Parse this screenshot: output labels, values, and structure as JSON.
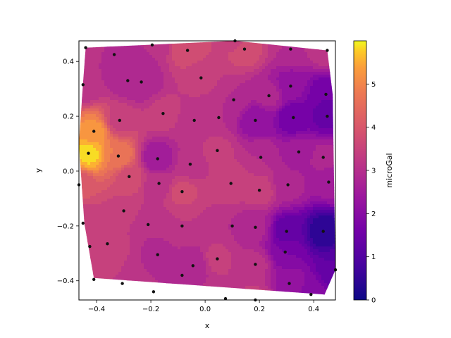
{
  "chart_data": {
    "type": "contour",
    "title": "",
    "xlabel": "x",
    "ylabel": "y",
    "xlim": [
      -0.465,
      0.48
    ],
    "ylim": [
      -0.47,
      0.475
    ],
    "xticks": [
      -0.4,
      -0.2,
      0.0,
      0.2,
      0.4
    ],
    "yticks": [
      -0.4,
      -0.2,
      0.0,
      0.2,
      0.4
    ],
    "xtick_labels": [
      "−0.4",
      "−0.2",
      "0.0",
      "0.2",
      "0.4"
    ],
    "ytick_labels": [
      "−0.4",
      "−0.2",
      "0.0",
      "0.2",
      "0.4"
    ],
    "colorbar": {
      "label": "microGal",
      "range": [
        0,
        6
      ],
      "ticks": [
        0,
        1,
        2,
        3,
        4,
        5
      ],
      "tick_labels": [
        "0",
        "1",
        "2",
        "3",
        "4",
        "5"
      ],
      "colormap": "plasma"
    },
    "hull": [
      [
        -0.44,
        0.45
      ],
      [
        0.11,
        0.475
      ],
      [
        0.45,
        0.44
      ],
      [
        0.47,
        0.28
      ],
      [
        0.48,
        -0.36
      ],
      [
        0.44,
        -0.45
      ],
      [
        -0.41,
        -0.39
      ],
      [
        -0.445,
        -0.19
      ],
      [
        -0.465,
        0.1
      ],
      [
        -0.45,
        0.32
      ]
    ],
    "points": [
      {
        "x": -0.44,
        "y": 0.45,
        "v": 3.0
      },
      {
        "x": -0.335,
        "y": 0.425,
        "v": 3.0
      },
      {
        "x": -0.285,
        "y": 0.33,
        "v": 2.8
      },
      {
        "x": -0.235,
        "y": 0.325,
        "v": 2.7
      },
      {
        "x": -0.195,
        "y": 0.46,
        "v": 3.0
      },
      {
        "x": -0.065,
        "y": 0.44,
        "v": 3.8
      },
      {
        "x": -0.015,
        "y": 0.34,
        "v": 3.4
      },
      {
        "x": 0.11,
        "y": 0.475,
        "v": 3.5
      },
      {
        "x": 0.145,
        "y": 0.445,
        "v": 3.8
      },
      {
        "x": 0.315,
        "y": 0.445,
        "v": 3.0
      },
      {
        "x": 0.45,
        "y": 0.44,
        "v": 3.2
      },
      {
        "x": -0.45,
        "y": 0.315,
        "v": 3.0
      },
      {
        "x": 0.315,
        "y": 0.31,
        "v": 2.2
      },
      {
        "x": 0.445,
        "y": 0.28,
        "v": 1.5
      },
      {
        "x": 0.235,
        "y": 0.275,
        "v": 2.8
      },
      {
        "x": 0.105,
        "y": 0.26,
        "v": 3.0
      },
      {
        "x": -0.155,
        "y": 0.21,
        "v": 3.4
      },
      {
        "x": -0.315,
        "y": 0.185,
        "v": 3.5
      },
      {
        "x": -0.04,
        "y": 0.185,
        "v": 3.2
      },
      {
        "x": 0.05,
        "y": 0.195,
        "v": 3.0
      },
      {
        "x": 0.185,
        "y": 0.185,
        "v": 2.1
      },
      {
        "x": 0.325,
        "y": 0.195,
        "v": 1.5
      },
      {
        "x": 0.45,
        "y": 0.2,
        "v": 1.4
      },
      {
        "x": -0.41,
        "y": 0.145,
        "v": 5.2
      },
      {
        "x": -0.43,
        "y": 0.065,
        "v": 5.8
      },
      {
        "x": -0.32,
        "y": 0.055,
        "v": 4.8
      },
      {
        "x": -0.175,
        "y": 0.045,
        "v": 2.4
      },
      {
        "x": -0.055,
        "y": 0.025,
        "v": 3.1
      },
      {
        "x": 0.045,
        "y": 0.075,
        "v": 3.4
      },
      {
        "x": 0.205,
        "y": 0.05,
        "v": 3.0
      },
      {
        "x": 0.345,
        "y": 0.07,
        "v": 2.5
      },
      {
        "x": 0.435,
        "y": 0.05,
        "v": 2.8
      },
      {
        "x": -0.28,
        "y": -0.02,
        "v": 3.8
      },
      {
        "x": -0.17,
        "y": -0.045,
        "v": 3.1
      },
      {
        "x": -0.085,
        "y": -0.075,
        "v": 3.7
      },
      {
        "x": 0.095,
        "y": -0.045,
        "v": 3.6
      },
      {
        "x": 0.2,
        "y": -0.07,
        "v": 3.5
      },
      {
        "x": 0.305,
        "y": -0.05,
        "v": 2.8
      },
      {
        "x": 0.455,
        "y": -0.04,
        "v": 2.5
      },
      {
        "x": -0.465,
        "y": -0.05,
        "v": 4.0
      },
      {
        "x": -0.3,
        "y": -0.145,
        "v": 3.5
      },
      {
        "x": -0.45,
        "y": -0.19,
        "v": 3.3
      },
      {
        "x": -0.21,
        "y": -0.195,
        "v": 3.0
      },
      {
        "x": -0.085,
        "y": -0.2,
        "v": 3.3
      },
      {
        "x": 0.1,
        "y": -0.2,
        "v": 3.0
      },
      {
        "x": 0.185,
        "y": -0.205,
        "v": 2.8
      },
      {
        "x": 0.3,
        "y": -0.22,
        "v": 1.3
      },
      {
        "x": 0.435,
        "y": -0.22,
        "v": 0.4
      },
      {
        "x": -0.425,
        "y": -0.275,
        "v": 3.4
      },
      {
        "x": -0.36,
        "y": -0.265,
        "v": 3.5
      },
      {
        "x": -0.175,
        "y": -0.305,
        "v": 2.9
      },
      {
        "x": 0.045,
        "y": -0.32,
        "v": 3.4
      },
      {
        "x": 0.295,
        "y": -0.295,
        "v": 1.8
      },
      {
        "x": 0.48,
        "y": -0.36,
        "v": 1.2
      },
      {
        "x": -0.045,
        "y": -0.345,
        "v": 2.7
      },
      {
        "x": 0.185,
        "y": -0.34,
        "v": 3.1
      },
      {
        "x": -0.41,
        "y": -0.395,
        "v": 3.3
      },
      {
        "x": -0.305,
        "y": -0.41,
        "v": 3.3
      },
      {
        "x": -0.085,
        "y": -0.38,
        "v": 3.0
      },
      {
        "x": 0.31,
        "y": -0.41,
        "v": 2.3
      },
      {
        "x": -0.19,
        "y": -0.44,
        "v": 3.0
      },
      {
        "x": 0.075,
        "y": -0.465,
        "v": 3.3
      },
      {
        "x": 0.185,
        "y": -0.47,
        "v": 3.4
      },
      {
        "x": 0.39,
        "y": -0.45,
        "v": 2.0
      }
    ]
  }
}
